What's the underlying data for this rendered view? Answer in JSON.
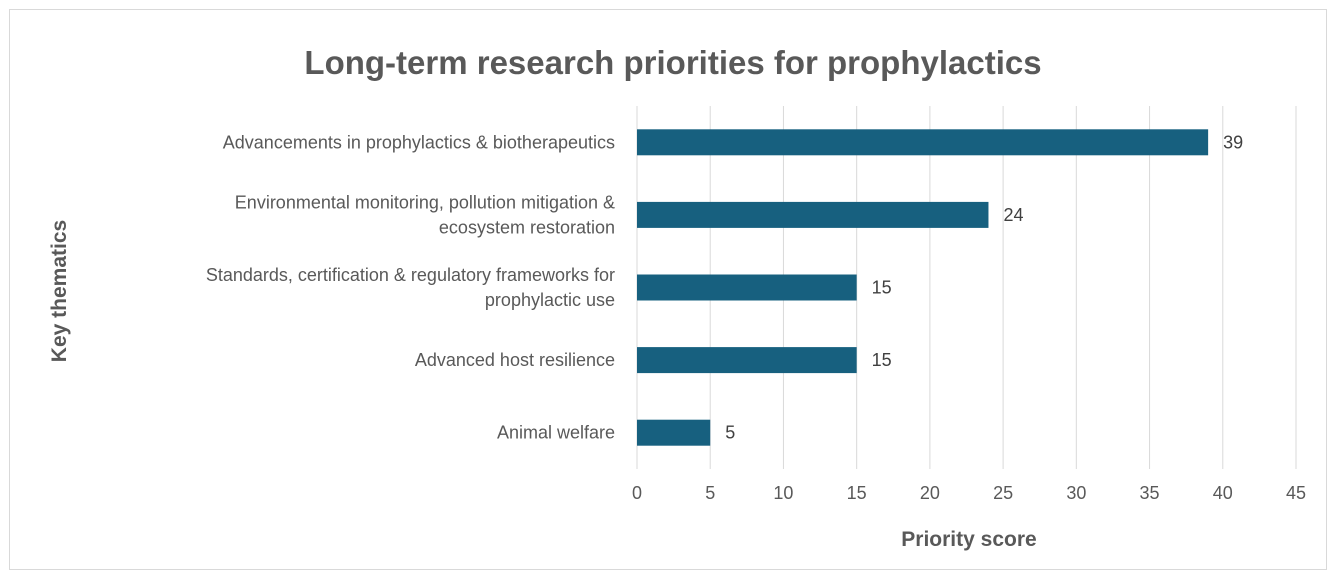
{
  "chart_data": {
    "type": "bar",
    "orientation": "horizontal",
    "title": "Long-term research priorities for prophylactics",
    "xlabel": "Priority score",
    "ylabel": "Key thematics",
    "categories": [
      [
        "Advancements in prophylactics & biotherapeutics"
      ],
      [
        "Environmental monitoring, pollution mitigation &",
        "ecosystem restoration"
      ],
      [
        "Standards, certification & regulatory frameworks for",
        "prophylactic use"
      ],
      [
        "Advanced host resilience"
      ],
      [
        "Animal welfare"
      ]
    ],
    "values": [
      39,
      24,
      15,
      15,
      5
    ],
    "xlim": [
      0,
      45
    ],
    "xticks": [
      "0",
      "5",
      "10",
      "15",
      "20",
      "25",
      "30",
      "35",
      "40",
      "45"
    ],
    "grid": true,
    "legend": "none",
    "bar_color": "#17607f"
  }
}
